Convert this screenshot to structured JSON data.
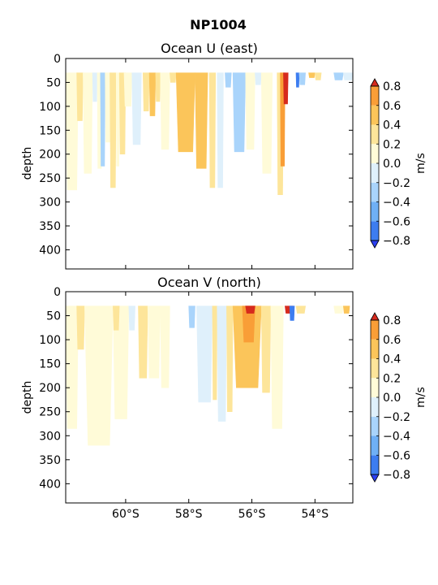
{
  "figure": {
    "suptitle": "NP1004"
  },
  "colorbar": {
    "label": "m/s",
    "levels": [
      -0.8,
      -0.6,
      -0.4,
      -0.2,
      0.0,
      0.2,
      0.4,
      0.6,
      0.8
    ],
    "tick_labels": [
      "−0.8",
      "−0.6",
      "−0.4",
      "−0.2",
      "0.0",
      "0.2",
      "0.4",
      "0.6",
      "0.8"
    ],
    "colors": [
      "#2b3ff0",
      "#3d7df0",
      "#6fb0f5",
      "#a9d4fb",
      "#dff0fb",
      "#fffbd8",
      "#fde59a",
      "#fbc55a",
      "#f99e37",
      "#f06a2a",
      "#d62a1d"
    ],
    "extend": "both"
  },
  "chart_data": [
    {
      "type": "contourf",
      "title": "Ocean U (east)",
      "xlabel": "",
      "ylabel": "depth",
      "xlim": [
        -61.9,
        -52.8
      ],
      "ylim": [
        440,
        0
      ],
      "xticks": [
        -60,
        -58,
        -56,
        -54
      ],
      "xtick_labels": [
        "60°S",
        "58°S",
        "56°S",
        "54°S"
      ],
      "yticks": [
        0,
        50,
        100,
        150,
        200,
        250,
        300,
        350,
        400
      ],
      "ytick_labels": [
        "0",
        "50",
        "100",
        "150",
        "200",
        "250",
        "300",
        "350",
        "400"
      ],
      "top_depth": 30,
      "regions": [
        {
          "x": [
            -61.9,
            -61.5
          ],
          "d": 275,
          "v": 0.1
        },
        {
          "x": [
            -61.55,
            -61.35
          ],
          "d": 130,
          "v": 0.25
        },
        {
          "x": [
            -61.35,
            -61.05
          ],
          "d": 240,
          "v": 0.1
        },
        {
          "x": [
            -61.05,
            -60.9
          ],
          "d": 90,
          "v": -0.1
        },
        {
          "x": [
            -60.9,
            -60.75
          ],
          "d": 230,
          "v": 0.1
        },
        {
          "x": [
            -60.8,
            -60.65
          ],
          "d": 225,
          "v": -0.25
        },
        {
          "x": [
            -60.65,
            -60.45
          ],
          "d": 175,
          "v": 0.1
        },
        {
          "x": [
            -60.5,
            -60.3
          ],
          "d": 270,
          "v": 0.25
        },
        {
          "x": [
            -60.3,
            -60.2
          ],
          "d": 225,
          "v": 0.1
        },
        {
          "x": [
            -60.2,
            -60.0
          ],
          "d": 200,
          "v": 0.25
        },
        {
          "x": [
            -60.05,
            -59.8
          ],
          "d": 100,
          "v": 0.1
        },
        {
          "x": [
            -59.8,
            -59.5
          ],
          "d": 180,
          "v": -0.1
        },
        {
          "x": [
            -59.45,
            -59.25
          ],
          "d": 110,
          "v": 0.25
        },
        {
          "x": [
            -59.25,
            -59.05
          ],
          "d": 120,
          "v": 0.5
        },
        {
          "x": [
            -59.05,
            -58.9
          ],
          "d": 90,
          "v": 0.25
        },
        {
          "x": [
            -58.9,
            -58.6
          ],
          "d": 190,
          "v": 0.1
        },
        {
          "x": [
            -58.6,
            -58.4
          ],
          "d": 50,
          "v": 0.25
        },
        {
          "x": [
            -58.4,
            -57.8
          ],
          "d": 195,
          "v": 0.5
        },
        {
          "x": [
            -57.8,
            -57.4
          ],
          "d": 230,
          "v": 0.5
        },
        {
          "x": [
            -57.35,
            -57.15
          ],
          "d": 270,
          "v": 0.25
        },
        {
          "x": [
            -57.1,
            -56.9
          ],
          "d": 270,
          "v": -0.1
        },
        {
          "x": [
            -56.85,
            -56.65
          ],
          "d": 60,
          "v": -0.25
        },
        {
          "x": [
            -56.6,
            -56.2
          ],
          "d": 195,
          "v": -0.25
        },
        {
          "x": [
            -56.2,
            -55.9
          ],
          "d": 190,
          "v": 0.1
        },
        {
          "x": [
            -55.9,
            -55.7
          ],
          "d": 55,
          "v": -0.1
        },
        {
          "x": [
            -55.7,
            -55.35
          ],
          "d": 240,
          "v": 0.1
        },
        {
          "x": [
            -55.2,
            -55.0
          ],
          "d": 285,
          "v": 0.25
        },
        {
          "x": [
            -55.1,
            -54.95
          ],
          "d": 225,
          "v": 0.7
        },
        {
          "x": [
            -55.0,
            -54.85
          ],
          "d": 95,
          "v": 0.85
        },
        {
          "x": [
            -54.6,
            -54.5
          ],
          "d": 60,
          "v": -0.7
        },
        {
          "x": [
            -54.5,
            -54.3
          ],
          "d": 55,
          "v": -0.25
        },
        {
          "x": [
            -54.2,
            -54.0
          ],
          "d": 40,
          "v": 0.5
        },
        {
          "x": [
            -54.0,
            -53.8
          ],
          "d": 45,
          "v": 0.25
        },
        {
          "x": [
            -53.4,
            -53.1
          ],
          "d": 45,
          "v": -0.25
        },
        {
          "x": [
            -53.1,
            -52.8
          ],
          "d": 45,
          "v": -0.1
        }
      ]
    },
    {
      "type": "contourf",
      "title": "Ocean V (north)",
      "xlabel": "",
      "ylabel": "depth",
      "xlim": [
        -61.9,
        -52.8
      ],
      "ylim": [
        440,
        0
      ],
      "xticks": [
        -60,
        -58,
        -56,
        -54
      ],
      "xtick_labels": [
        "60°S",
        "58°S",
        "56°S",
        "54°S"
      ],
      "yticks": [
        0,
        50,
        100,
        150,
        200,
        250,
        300,
        350,
        400
      ],
      "ytick_labels": [
        "0",
        "50",
        "100",
        "150",
        "200",
        "250",
        "300",
        "350",
        "400"
      ],
      "top_depth": 30,
      "regions": [
        {
          "x": [
            -61.9,
            -61.5
          ],
          "d": 285,
          "v": 0.1
        },
        {
          "x": [
            -61.55,
            -61.3
          ],
          "d": 120,
          "v": 0.25
        },
        {
          "x": [
            -61.3,
            -60.4
          ],
          "d": 320,
          "v": 0.1
        },
        {
          "x": [
            -60.4,
            -59.9
          ],
          "d": 265,
          "v": 0.1
        },
        {
          "x": [
            -60.4,
            -60.2
          ],
          "d": 80,
          "v": 0.25
        },
        {
          "x": [
            -59.9,
            -59.7
          ],
          "d": 80,
          "v": -0.1
        },
        {
          "x": [
            -59.6,
            -59.3
          ],
          "d": 180,
          "v": 0.25
        },
        {
          "x": [
            -59.3,
            -58.9
          ],
          "d": 180,
          "v": 0.1
        },
        {
          "x": [
            -58.9,
            -58.6
          ],
          "d": 200,
          "v": 0.1
        },
        {
          "x": [
            -58.0,
            -57.8
          ],
          "d": 75,
          "v": -0.25
        },
        {
          "x": [
            -57.75,
            -57.25
          ],
          "d": 230,
          "v": -0.1
        },
        {
          "x": [
            -57.25,
            -57.1
          ],
          "d": 225,
          "v": 0.25
        },
        {
          "x": [
            -57.1,
            -56.8
          ],
          "d": 270,
          "v": -0.1
        },
        {
          "x": [
            -56.8,
            -56.6
          ],
          "d": 250,
          "v": 0.25
        },
        {
          "x": [
            -56.6,
            -55.7
          ],
          "d": 200,
          "v": 0.5
        },
        {
          "x": [
            -56.3,
            -55.9
          ],
          "d": 105,
          "v": 0.7
        },
        {
          "x": [
            -56.2,
            -55.9
          ],
          "d": 45,
          "v": 0.85
        },
        {
          "x": [
            -55.7,
            -55.4
          ],
          "d": 210,
          "v": 0.25
        },
        {
          "x": [
            -55.4,
            -55.0
          ],
          "d": 285,
          "v": 0.1
        },
        {
          "x": [
            -54.95,
            -54.7
          ],
          "d": 45,
          "v": 0.85
        },
        {
          "x": [
            -54.8,
            -54.65
          ],
          "d": 60,
          "v": -0.8
        },
        {
          "x": [
            -54.6,
            -54.3
          ],
          "d": 45,
          "v": 0.25
        },
        {
          "x": [
            -53.4,
            -53.1
          ],
          "d": 45,
          "v": 0.1
        },
        {
          "x": [
            -53.1,
            -52.9
          ],
          "d": 45,
          "v": 0.5
        }
      ]
    }
  ]
}
